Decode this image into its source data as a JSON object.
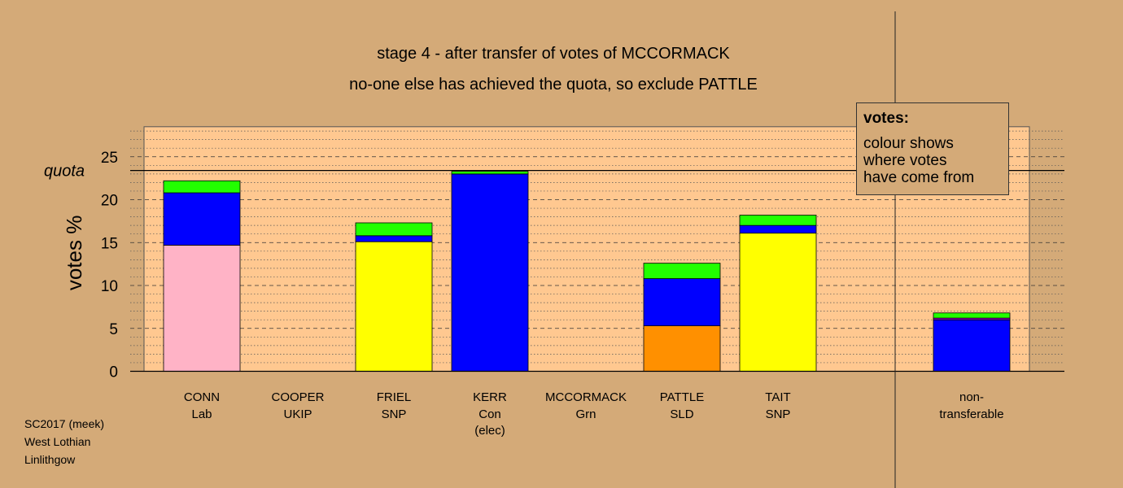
{
  "header": {
    "title_line1": "stage 4 - after transfer of votes of MCCORMACK",
    "title_line2": "no-one else has achieved the quota, so exclude PATTLE"
  },
  "footer": {
    "line1": "SC2017 (meek)",
    "line2": "West Lothian",
    "line3": "Linlithgow"
  },
  "legend": {
    "title": "votes:",
    "line1": "colour shows",
    "line2": "where votes",
    "line3": "have come from"
  },
  "colors": {
    "background": "#d4aa78",
    "plot_area": "#ffc890",
    "Lab": "#ffb3c6",
    "SNP": "#ffff00",
    "Con": "#0000ff",
    "Grn": "#22ff00",
    "SLD": "#ff9000",
    "UKIP": "#9900cc"
  },
  "chart_data": {
    "type": "bar",
    "stacked": true,
    "ylabel": "votes %",
    "ylim": [
      0,
      28.5
    ],
    "yticks": [
      0,
      5,
      10,
      15,
      20,
      25
    ],
    "quota": 23.4,
    "quota_label": "quota",
    "grid": true,
    "legend_position": "top-right",
    "categories": [
      {
        "name": "CONN",
        "party": "Lab",
        "note": ""
      },
      {
        "name": "COOPER",
        "party": "UKIP",
        "note": ""
      },
      {
        "name": "FRIEL",
        "party": "SNP",
        "note": ""
      },
      {
        "name": "KERR",
        "party": "Con",
        "note": "(elec)"
      },
      {
        "name": "MCCORMACK",
        "party": "Grn",
        "note": ""
      },
      {
        "name": "PATTLE",
        "party": "SLD",
        "note": ""
      },
      {
        "name": "TAIT",
        "party": "SNP",
        "note": ""
      }
    ],
    "nontransferable_label": [
      "non-",
      "transferable"
    ],
    "bars": [
      {
        "segments": [
          {
            "source": "Lab",
            "value": 14.7
          },
          {
            "source": "Con",
            "value": 6.1
          },
          {
            "source": "Grn",
            "value": 1.4
          }
        ]
      },
      {
        "segments": []
      },
      {
        "segments": [
          {
            "source": "SNP",
            "value": 15.1
          },
          {
            "source": "Con",
            "value": 0.7
          },
          {
            "source": "Grn",
            "value": 1.5
          }
        ]
      },
      {
        "segments": [
          {
            "source": "Con",
            "value": 23.0
          },
          {
            "source": "Grn",
            "value": 0.3
          }
        ]
      },
      {
        "segments": []
      },
      {
        "segments": [
          {
            "source": "SLD",
            "value": 5.3
          },
          {
            "source": "Con",
            "value": 5.5
          },
          {
            "source": "Grn",
            "value": 1.8
          }
        ]
      },
      {
        "segments": [
          {
            "source": "SNP",
            "value": 16.1
          },
          {
            "source": "Con",
            "value": 0.9
          },
          {
            "source": "Grn",
            "value": 1.2
          }
        ]
      }
    ],
    "nontransferable": {
      "segments": [
        {
          "source": "Con",
          "value": 6.0
        },
        {
          "source": "UKIP",
          "value": 0.2
        },
        {
          "source": "Grn",
          "value": 0.6
        }
      ]
    }
  }
}
